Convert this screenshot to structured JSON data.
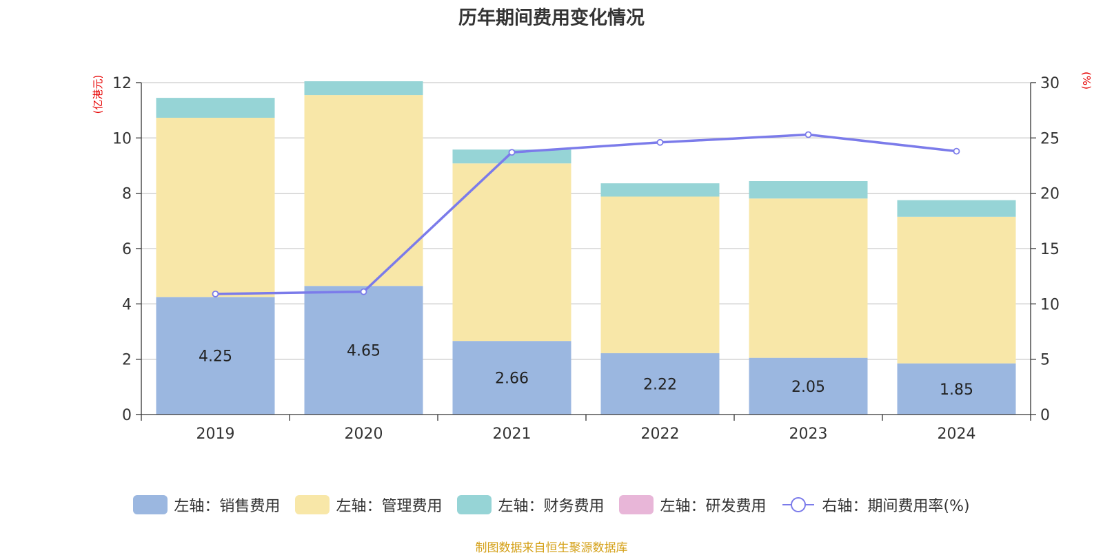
{
  "chart_data": {
    "type": "bar",
    "title": "历年期间费用变化情况",
    "left_axis_unit": "(亿港元)",
    "right_axis_unit": "(%)",
    "categories": [
      "2019",
      "2020",
      "2021",
      "2022",
      "2023",
      "2024"
    ],
    "y_left": {
      "min": 0,
      "max": 12,
      "ticks": [
        0,
        2,
        4,
        6,
        8,
        10,
        12
      ]
    },
    "y_right": {
      "min": 0,
      "max": 30,
      "ticks": [
        0,
        5,
        10,
        15,
        20,
        25,
        30
      ]
    },
    "grid": true,
    "legend_position": "bottom",
    "series": [
      {
        "name": "左轴：销售费用",
        "axis": "left",
        "stack": "expenses",
        "color": "#9bb7e0",
        "values": [
          4.25,
          4.65,
          2.66,
          2.22,
          2.05,
          1.85
        ],
        "show_labels": true
      },
      {
        "name": "左轴：管理费用",
        "axis": "left",
        "stack": "expenses",
        "color": "#f8e7a8",
        "values": [
          6.48,
          6.9,
          6.42,
          5.66,
          5.76,
          5.3
        ]
      },
      {
        "name": "左轴：财务费用",
        "axis": "left",
        "stack": "expenses",
        "color": "#96d4d6",
        "values": [
          0.72,
          0.5,
          0.5,
          0.48,
          0.63,
          0.6
        ]
      },
      {
        "name": "左轴：研发费用",
        "axis": "left",
        "stack": "expenses",
        "color": "#e8b6d8",
        "values": [
          0,
          0,
          0,
          0,
          0,
          0
        ]
      },
      {
        "name": "右轴：期间费用率(%)",
        "axis": "right",
        "type": "line",
        "color": "#7b7bea",
        "values": [
          10.9,
          11.1,
          23.7,
          24.6,
          25.3,
          23.8
        ]
      }
    ],
    "source_note": "制图数据来自恒生聚源数据库"
  }
}
